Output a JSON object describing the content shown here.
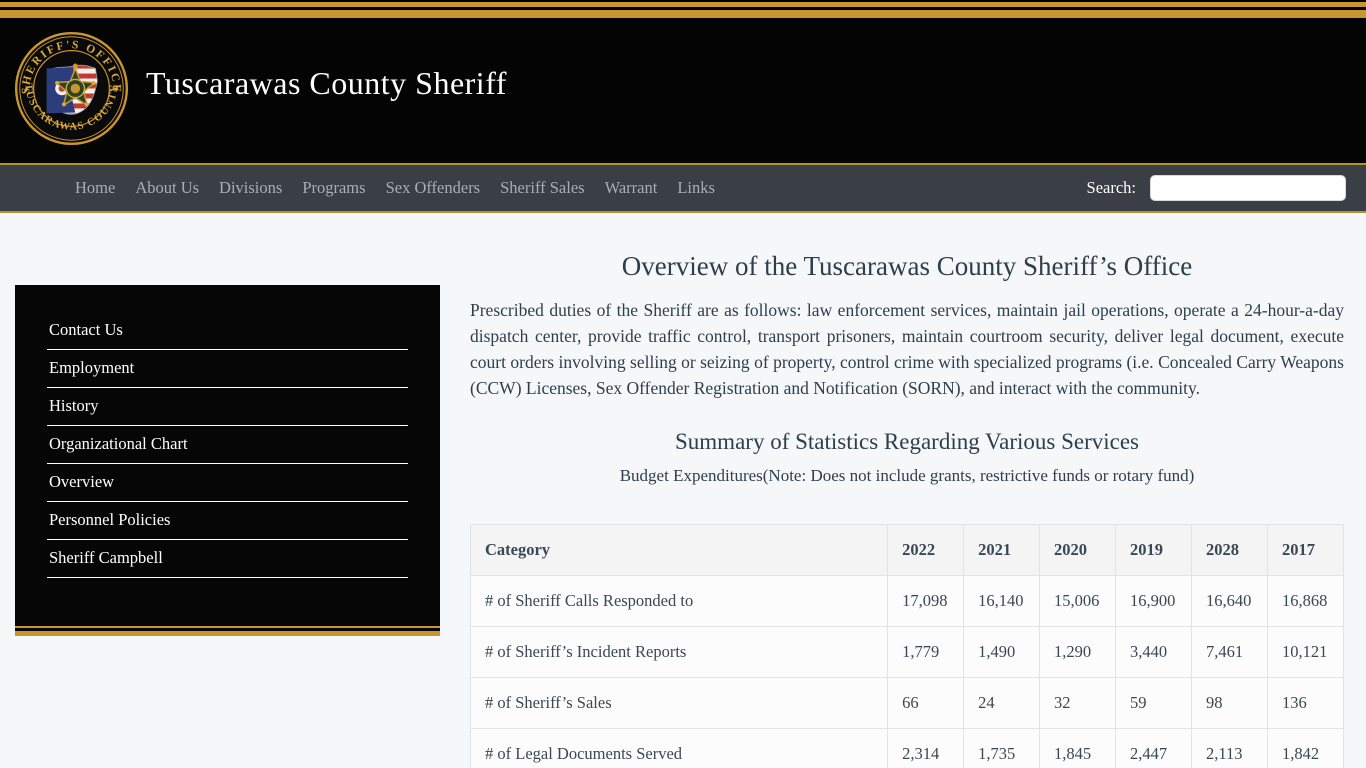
{
  "colors": {
    "gold_accent": "#c9952f",
    "nav_background": "#3a3f46",
    "masthead_background": "#040404",
    "page_background": "#f5f7f9",
    "text_dark": "#2f3e4b"
  },
  "brand": {
    "site_title": "Tuscarawas County Sheriff",
    "badge_top_text": "SHERIFF'S OFFICE",
    "badge_bottom_text": "TUSCARAWAS COUNTY",
    "badge_star_left": "✦",
    "badge_star_right": "✦"
  },
  "nav": {
    "items": [
      "Home",
      "About Us",
      "Divisions",
      "Programs",
      "Sex Offenders",
      "Sheriff Sales",
      "Warrant",
      "Links"
    ],
    "search_label": "Search:",
    "search_value": ""
  },
  "sidebar": {
    "items": [
      "Contact Us",
      "Employment",
      "History",
      "Organizational Chart",
      "Overview",
      "Personnel Policies",
      "Sheriff Campbell"
    ]
  },
  "main": {
    "page_title": "Overview of the Tuscarawas County Sheriff’s Office",
    "intro": "Prescribed duties of the Sheriff are as follows: law enforcement services, maintain jail operations, operate a 24-hour-a-day dispatch center, provide traffic control, transport prisoners, maintain courtroom security, deliver legal document, execute court orders involving selling or seizing of property, control crime with specialized programs (i.e. Concealed Carry Weapons (CCW) Licenses, Sex Offender Registration and Notification (SORN), and interact with the community.",
    "stats_title": "Summary of Statistics Regarding Various Services",
    "stats_subtitle": "Budget Expenditures(Note: Does not include grants, restrictive funds or rotary fund)"
  },
  "table": {
    "headers": [
      "Category",
      "2022",
      "2021",
      "2020",
      "2019",
      "2028",
      "2017"
    ],
    "rows": [
      {
        "category": "# of Sheriff Calls Responded to",
        "values": [
          "17,098",
          "16,140",
          "15,006",
          "16,900",
          "16,640",
          "16,868"
        ]
      },
      {
        "category": "# of Sheriff’s Incident Reports",
        "values": [
          "1,779",
          "1,490",
          "1,290",
          "3,440",
          "7,461",
          "10,121"
        ]
      },
      {
        "category": "# of Sheriff’s Sales",
        "values": [
          "66",
          "24",
          "32",
          "59",
          "98",
          "136"
        ]
      },
      {
        "category": "# of Legal Documents Served",
        "values": [
          "2,314",
          "1,735",
          "1,845",
          "2,447",
          "2,113",
          "1,842"
        ]
      }
    ]
  }
}
